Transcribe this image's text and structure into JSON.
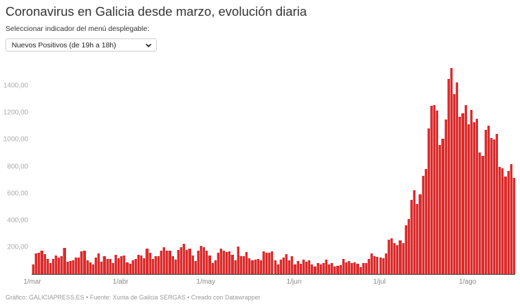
{
  "header": {
    "title": "Coronavirus en Galicia desde marzo, evolución diaria",
    "subtitle": "Seleccionar indicador del menú desplegable:"
  },
  "selector": {
    "selected": "Nuevos Positivos (de 19h a 18h)",
    "icon": "chevron-down-icon"
  },
  "footer": {
    "text": "Gráfico: GALICIAPRESS.ES • Fuente: Xunta de Galicia SERGAS • Creado con Datawrapper"
  },
  "colors": {
    "bar": "#dc2a2b",
    "axis": "#333333",
    "tick_label": "#aaaaaa"
  },
  "chart_data": {
    "type": "bar",
    "title": "Coronavirus en Galicia desde marzo, evolución diaria",
    "series_name": "Nuevos Positivos (de 19h a 18h)",
    "xlabel": "",
    "ylabel": "",
    "ylim": [
      0,
      1580
    ],
    "grid": false,
    "legend": "none",
    "y_ticks": [
      {
        "value": 200,
        "label": "200,00"
      },
      {
        "value": 400,
        "label": "400,00"
      },
      {
        "value": 600,
        "label": "600,00"
      },
      {
        "value": 800,
        "label": "800,00"
      },
      {
        "value": 1000,
        "label": "1000,00"
      },
      {
        "value": 1200,
        "label": "1200,00"
      },
      {
        "value": 1400,
        "label": "1400,00"
      }
    ],
    "x_ticks": [
      {
        "index": 0,
        "label": "1/mar"
      },
      {
        "index": 31,
        "label": "1/abr"
      },
      {
        "index": 61,
        "label": "1/may"
      },
      {
        "index": 92,
        "label": "1/jun"
      },
      {
        "index": 122,
        "label": "1/jul"
      },
      {
        "index": 153,
        "label": "1/ago"
      }
    ],
    "start_date": "1/mar",
    "values": [
      72,
      153,
      158,
      174,
      148,
      112,
      82,
      112,
      138,
      123,
      133,
      194,
      92,
      97,
      102,
      123,
      123,
      169,
      174,
      102,
      87,
      72,
      123,
      153,
      92,
      133,
      112,
      112,
      82,
      143,
      118,
      133,
      138,
      87,
      77,
      102,
      112,
      143,
      138,
      118,
      189,
      158,
      112,
      133,
      133,
      174,
      200,
      174,
      174,
      133,
      108,
      179,
      200,
      225,
      179,
      189,
      138,
      97,
      174,
      210,
      200,
      174,
      138,
      82,
      102,
      158,
      189,
      174,
      163,
      169,
      143,
      102,
      205,
      133,
      133,
      163,
      118,
      102,
      108,
      112,
      102,
      169,
      158,
      158,
      169,
      102,
      72,
      108,
      123,
      148,
      102,
      133,
      72,
      97,
      77,
      108,
      92,
      102,
      72,
      56,
      82,
      72,
      82,
      108,
      72,
      82,
      56,
      62,
      66,
      112,
      87,
      97,
      82,
      87,
      77,
      51,
      82,
      82,
      112,
      153,
      133,
      128,
      123,
      118,
      153,
      256,
      266,
      230,
      215,
      250,
      230,
      363,
      409,
      552,
      624,
      522,
      593,
      731,
      782,
      1083,
      1252,
      1257,
      1216,
      961,
      1007,
      1150,
      1452,
      1533,
      1339,
      1426,
      1170,
      1196,
      1257,
      1114,
      1221,
      1129,
      1155,
      904,
      879,
      1073,
      1104,
      1012,
      1002,
      1042,
      797,
      787,
      726,
      767,
      818,
      716
    ]
  }
}
